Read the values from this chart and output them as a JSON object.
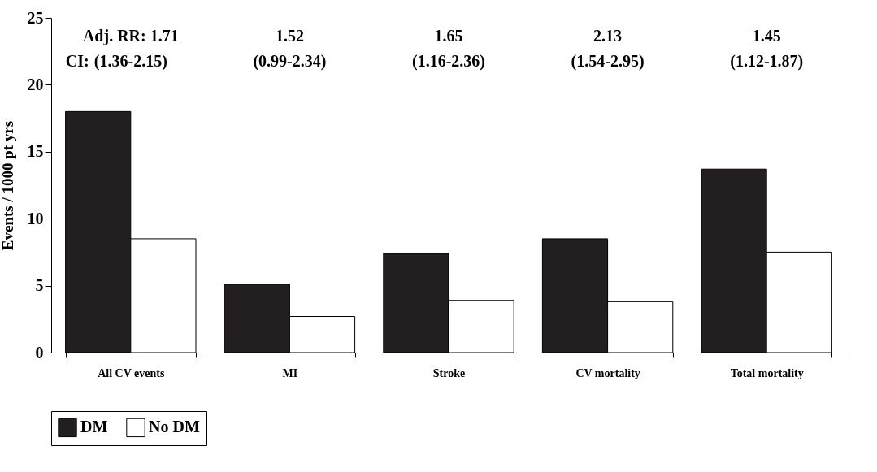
{
  "chart_data": {
    "type": "bar",
    "ylabel": "Events / 1000  pt yrs",
    "categories": [
      "All CV  events",
      "MI",
      "Stroke",
      "CV mortality",
      "Total mortality"
    ],
    "series": [
      {
        "name": "DM",
        "color": "#231f20",
        "values": [
          18,
          5.1,
          7.4,
          8.5,
          13.7
        ]
      },
      {
        "name": "No DM",
        "color": "#ffffff",
        "values": [
          8.5,
          2.7,
          3.9,
          3.8,
          7.5
        ]
      }
    ],
    "ylim": [
      0,
      25
    ],
    "yticks": [
      0,
      5,
      10,
      15,
      20,
      25
    ],
    "grid": false,
    "legend": "bottom",
    "annotations": [
      "Adj.  RR: 1.71",
      "1.52",
      "1.65",
      "2.13",
      "1.45",
      "CI:",
      "(1.36-2.15)",
      "(0.99-2.34)",
      "(1.16-2.36)",
      "(1.54-2.95)",
      "(1.12-1.87)"
    ]
  }
}
